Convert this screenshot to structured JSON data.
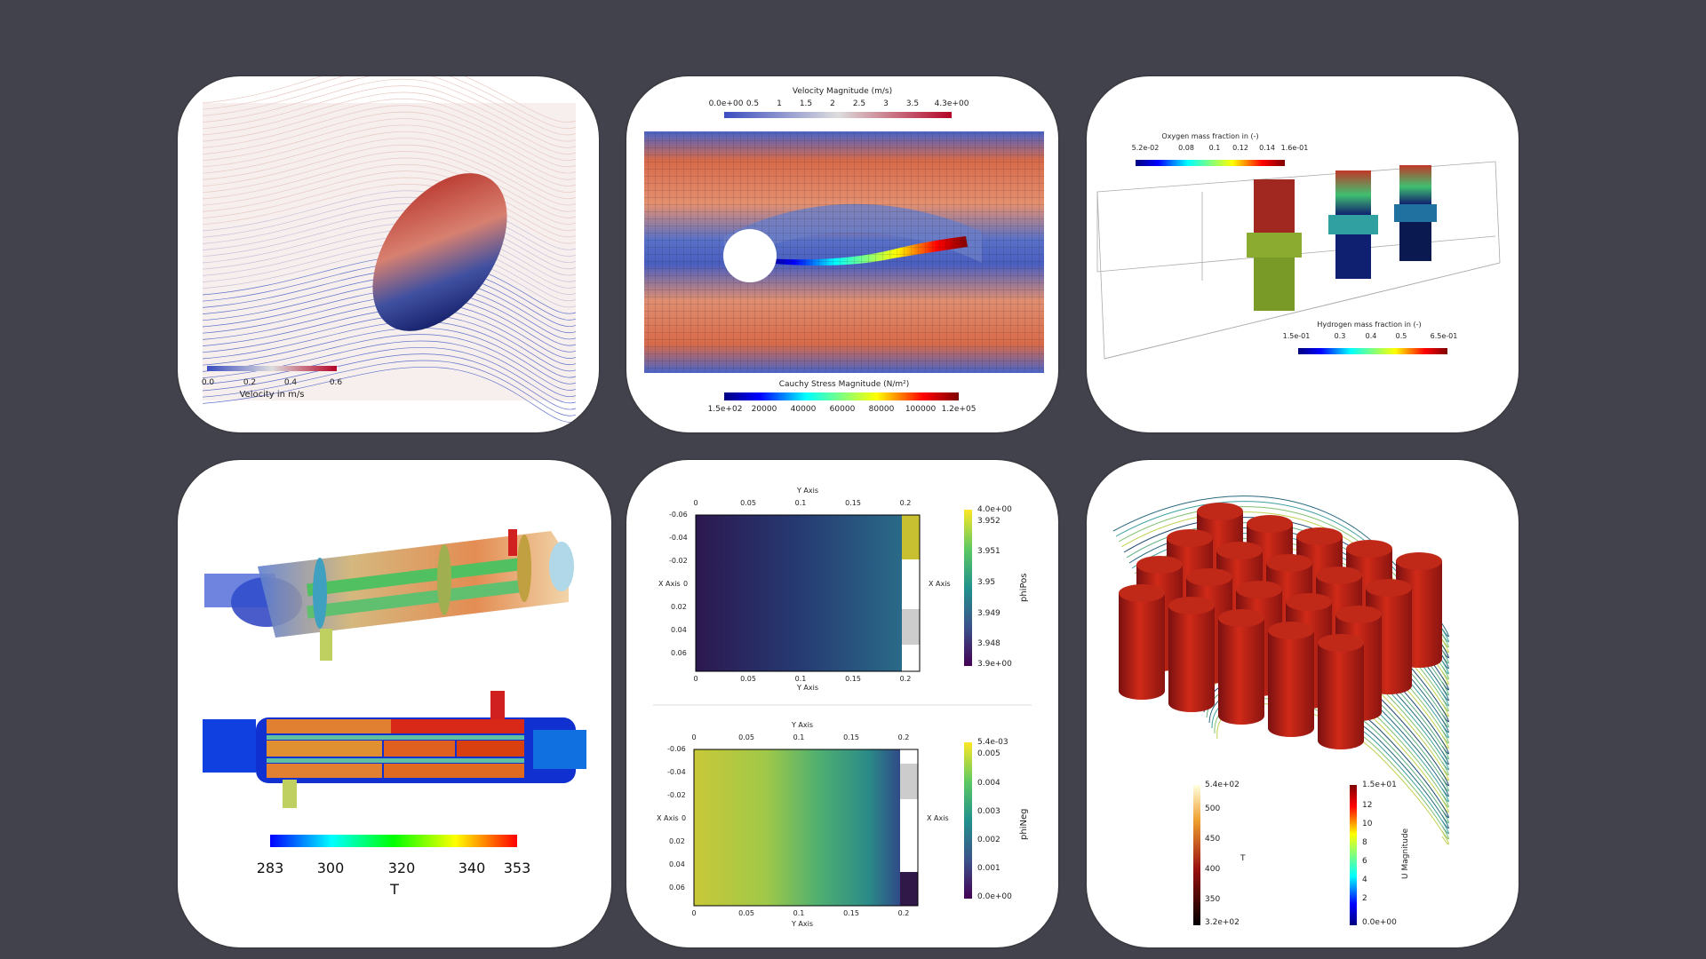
{
  "panels": {
    "ellipsoid": {
      "colorbar_label": "Velocity in m/s",
      "ticks": [
        "0.0",
        "0.2",
        "0.4",
        "0.6"
      ]
    },
    "cylinder": {
      "top_label": "Velocity Magnitude (m/s)",
      "top_ticks": [
        "0.0e+00",
        "0.5",
        "1",
        "1.5",
        "2",
        "2.5",
        "3",
        "3.5",
        "4.3e+00"
      ],
      "bottom_label": "Cauchy Stress Magnitude (N/m²)",
      "bottom_ticks": [
        "1.5e+02",
        "20000",
        "40000",
        "60000",
        "80000",
        "100000",
        "1.2e+05"
      ]
    },
    "fuelcell": {
      "oxygen_label": "Oxygen mass fraction in (-)",
      "oxygen_ticks": [
        "5.2e-02",
        "0.08",
        "0.1",
        "0.12",
        "0.14",
        "1.6e-01"
      ],
      "hydrogen_label": "Hydrogen mass fraction in (-)",
      "hydrogen_ticks": [
        "1.5e-01",
        "0.3",
        "0.4",
        "0.5",
        "6.5e-01"
      ]
    },
    "exchanger": {
      "ticks": [
        "283",
        "300",
        "320",
        "340",
        "353"
      ],
      "title": "T"
    },
    "plots": {
      "x_axis_label": "Y Axis",
      "y_axis_label": "X Axis",
      "x_ticks": [
        "0",
        "0.05",
        "0.1",
        "0.15",
        "0.2"
      ],
      "y_ticks": [
        "-0.06",
        "-0.04",
        "-0.02",
        "0",
        "0.02",
        "0.04",
        "0.06"
      ],
      "phipos": {
        "name": "phiPos",
        "ticks": [
          "4.0e+00",
          "3.952",
          "3.951",
          "3.95",
          "3.949",
          "3.948",
          "3.9e+00"
        ]
      },
      "phineg": {
        "name": "phiNeg",
        "ticks": [
          "5.4e-03",
          "0.005",
          "0.004",
          "0.003",
          "0.002",
          "0.001",
          "0.0e+00"
        ]
      }
    },
    "cylinders": {
      "t_label": "T",
      "t_ticks": [
        "5.4e+02",
        "500",
        "450",
        "400",
        "350",
        "3.2e+02"
      ],
      "u_label": "U Magnitude",
      "u_ticks": [
        "1.5e+01",
        "12",
        "10",
        "8",
        "6",
        "4",
        "2",
        "0.0e+00"
      ]
    }
  }
}
